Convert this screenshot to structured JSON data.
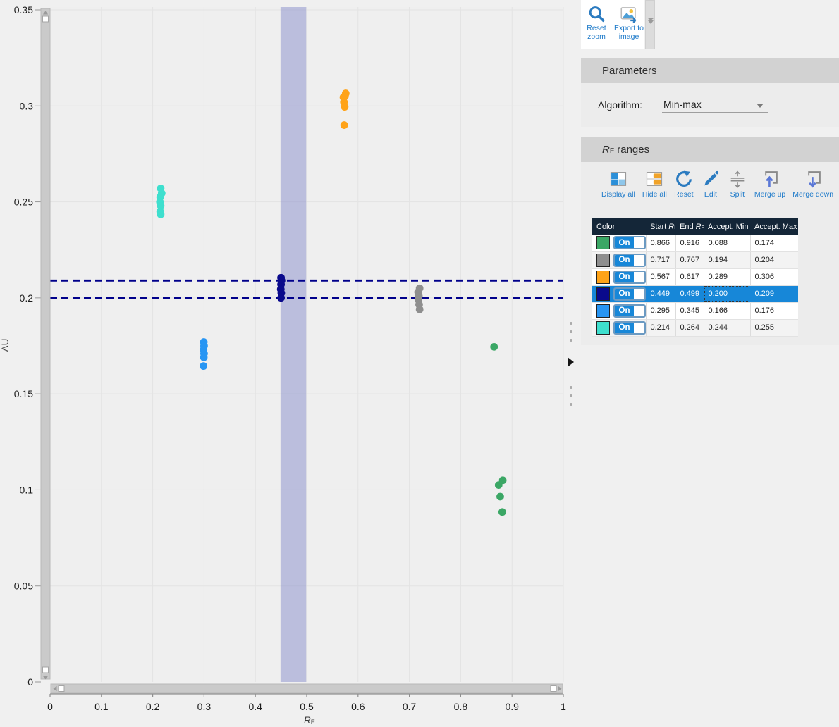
{
  "chart_toolbar": {
    "buttons": [
      {
        "label": "Reset zoom",
        "icon": "magnifier-icon"
      },
      {
        "label": "Export to image",
        "icon": "export-image-icon"
      }
    ]
  },
  "parameters": {
    "title": "Parameters",
    "algorithm_label": "Algorithm:",
    "algorithm_value": "Min-max"
  },
  "rf_ranges": {
    "title": "RF ranges",
    "toolbar": [
      {
        "label": "Display all",
        "icon": "display-all-icon"
      },
      {
        "label": "Hide all",
        "icon": "hide-all-icon"
      },
      {
        "label": "Reset",
        "icon": "reset-icon"
      },
      {
        "label": "Edit",
        "icon": "edit-icon"
      },
      {
        "label": "Split",
        "icon": "split-icon"
      },
      {
        "label": "Merge up",
        "icon": "merge-up-icon"
      },
      {
        "label": "Merge down",
        "icon": "merge-down-icon"
      }
    ],
    "table": {
      "headers": [
        "Color",
        "Start RF",
        "End RF",
        "Accept. Min",
        "Accept. Max"
      ],
      "toggle_label": "On",
      "selected_row_color": "#1787d8",
      "rows": [
        {
          "color": "#3BA765",
          "on": true,
          "start_rf": "0.866",
          "end_rf": "0.916",
          "accept_min": "0.088",
          "accept_max": "0.174",
          "selected": false
        },
        {
          "color": "#8E8E8E",
          "on": true,
          "start_rf": "0.717",
          "end_rf": "0.767",
          "accept_min": "0.194",
          "accept_max": "0.204",
          "selected": false
        },
        {
          "color": "#FFA318",
          "on": true,
          "start_rf": "0.567",
          "end_rf": "0.617",
          "accept_min": "0.289",
          "accept_max": "0.306",
          "selected": false
        },
        {
          "color": "#0A0A8C",
          "on": true,
          "start_rf": "0.449",
          "end_rf": "0.499",
          "accept_min": "0.200",
          "accept_max": "0.209",
          "selected": true
        },
        {
          "color": "#2795F3",
          "on": true,
          "start_rf": "0.295",
          "end_rf": "0.345",
          "accept_min": "0.166",
          "accept_max": "0.176",
          "selected": false
        },
        {
          "color": "#3EDFCE",
          "on": true,
          "start_rf": "0.214",
          "end_rf": "0.264",
          "accept_min": "0.244",
          "accept_max": "0.255",
          "selected": false
        }
      ]
    }
  },
  "chart_data": {
    "type": "scatter",
    "xlabel": "RF",
    "ylabel": "AU",
    "xlim": [
      0,
      1
    ],
    "ylim": [
      0,
      0.35
    ],
    "x_ticks": [
      0,
      0.1,
      0.2,
      0.3,
      0.4,
      0.5,
      0.6,
      0.7,
      0.8,
      0.9,
      1
    ],
    "y_ticks": [
      0,
      0.05,
      0.1,
      0.15,
      0.2,
      0.25,
      0.3,
      0.35
    ],
    "grid": true,
    "selection_band": {
      "x_start": 0.449,
      "x_end": 0.499,
      "color": "#7d82c8",
      "opacity": 0.45
    },
    "dashed_guides": {
      "values": [
        0.209,
        0.2
      ],
      "color": "#00008B"
    },
    "series": [
      {
        "name": "turquoise-range",
        "color": "#3EDFCE",
        "points": [
          [
            0.2155,
            0.257
          ],
          [
            0.2175,
            0.2545
          ],
          [
            0.2145,
            0.2525
          ],
          [
            0.214,
            0.25
          ],
          [
            0.2155,
            0.248
          ],
          [
            0.2145,
            0.245
          ],
          [
            0.2155,
            0.2435
          ]
        ]
      },
      {
        "name": "orange-range",
        "color": "#FFA318",
        "points": [
          [
            0.576,
            0.3065
          ],
          [
            0.5745,
            0.305
          ],
          [
            0.5715,
            0.3045
          ],
          [
            0.5725,
            0.302
          ],
          [
            0.574,
            0.2995
          ],
          [
            0.573,
            0.29
          ]
        ]
      },
      {
        "name": "navy-range",
        "color": "#0A0A8C",
        "points": [
          [
            0.45,
            0.2105
          ],
          [
            0.451,
            0.209
          ],
          [
            0.45,
            0.207
          ],
          [
            0.4495,
            0.2045
          ],
          [
            0.4505,
            0.2025
          ],
          [
            0.45,
            0.2
          ]
        ]
      },
      {
        "name": "gray-range",
        "color": "#8E8E8E",
        "points": [
          [
            0.72,
            0.205
          ],
          [
            0.717,
            0.203
          ],
          [
            0.7185,
            0.201
          ],
          [
            0.7175,
            0.199
          ],
          [
            0.719,
            0.1965
          ],
          [
            0.72,
            0.194
          ]
        ]
      },
      {
        "name": "blue-range",
        "color": "#2795F3",
        "points": [
          [
            0.2995,
            0.177
          ],
          [
            0.3,
            0.175
          ],
          [
            0.299,
            0.173
          ],
          [
            0.3,
            0.171
          ],
          [
            0.2995,
            0.169
          ],
          [
            0.299,
            0.1645
          ]
        ]
      },
      {
        "name": "green-range",
        "color": "#3BA765",
        "points": [
          [
            0.865,
            0.1745
          ],
          [
            0.882,
            0.105
          ],
          [
            0.874,
            0.1025
          ],
          [
            0.877,
            0.0965
          ],
          [
            0.881,
            0.0885
          ]
        ]
      }
    ]
  }
}
